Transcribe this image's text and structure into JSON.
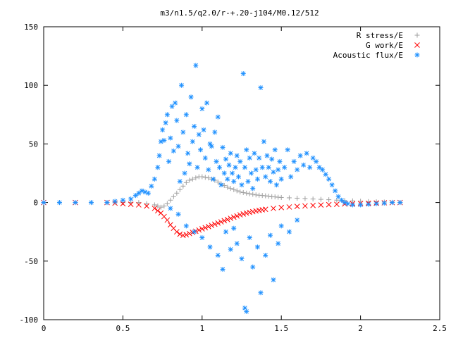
{
  "chart_data": {
    "type": "scatter",
    "title": "m3/n1.5/q2.0/r-+.20-j104/M0.12/512",
    "xlim": [
      0,
      2.5
    ],
    "ylim": [
      -100,
      150
    ],
    "x_ticks": [
      "0",
      "0.5",
      "1",
      "1.5",
      "2",
      "2.5"
    ],
    "y_ticks": [
      "150",
      "100",
      "50",
      "0",
      "-50",
      "-100"
    ],
    "x_tick_values": [
      0,
      0.5,
      1,
      1.5,
      2,
      2.5
    ],
    "y_tick_values": [
      150,
      100,
      50,
      0,
      -50,
      -100
    ],
    "grid": false,
    "legend_position": "top-right",
    "series": [
      {
        "name": "R stress/E",
        "marker": "plus",
        "color": "#a0a0a0",
        "points": [
          [
            0.0,
            0
          ],
          [
            0.1,
            0
          ],
          [
            0.2,
            0
          ],
          [
            0.3,
            0
          ],
          [
            0.4,
            0
          ],
          [
            0.45,
            0
          ],
          [
            0.5,
            0
          ],
          [
            0.55,
            0
          ],
          [
            0.6,
            0
          ],
          [
            0.65,
            -1
          ],
          [
            0.7,
            -2
          ],
          [
            0.72,
            -3
          ],
          [
            0.74,
            -4
          ],
          [
            0.76,
            -3
          ],
          [
            0.78,
            -1
          ],
          [
            0.8,
            2
          ],
          [
            0.82,
            5
          ],
          [
            0.84,
            8
          ],
          [
            0.86,
            11
          ],
          [
            0.88,
            14
          ],
          [
            0.9,
            17
          ],
          [
            0.92,
            19
          ],
          [
            0.94,
            20
          ],
          [
            0.96,
            21
          ],
          [
            0.98,
            22
          ],
          [
            1.0,
            22
          ],
          [
            1.02,
            21.5
          ],
          [
            1.04,
            21
          ],
          [
            1.06,
            20
          ],
          [
            1.08,
            19
          ],
          [
            1.1,
            17.5
          ],
          [
            1.12,
            16
          ],
          [
            1.14,
            14.5
          ],
          [
            1.16,
            13
          ],
          [
            1.18,
            12
          ],
          [
            1.2,
            11
          ],
          [
            1.22,
            10
          ],
          [
            1.24,
            9
          ],
          [
            1.26,
            8.5
          ],
          [
            1.28,
            8
          ],
          [
            1.3,
            7.5
          ],
          [
            1.32,
            7
          ],
          [
            1.34,
            6.5
          ],
          [
            1.36,
            6.2
          ],
          [
            1.38,
            6
          ],
          [
            1.4,
            5.7
          ],
          [
            1.42,
            5.4
          ],
          [
            1.44,
            5
          ],
          [
            1.46,
            4.8
          ],
          [
            1.48,
            4.5
          ],
          [
            1.5,
            4.3
          ],
          [
            1.55,
            4
          ],
          [
            1.6,
            3.7
          ],
          [
            1.65,
            3.4
          ],
          [
            1.7,
            3
          ],
          [
            1.75,
            2.7
          ],
          [
            1.8,
            2.4
          ],
          [
            1.85,
            2
          ],
          [
            1.9,
            1.7
          ],
          [
            1.95,
            1.4
          ],
          [
            2.0,
            1.1
          ],
          [
            2.05,
            0.8
          ],
          [
            2.1,
            0.6
          ],
          [
            2.15,
            0.4
          ],
          [
            2.2,
            0.2
          ],
          [
            2.25,
            0
          ]
        ]
      },
      {
        "name": "G work/E",
        "marker": "cross",
        "color": "#ff0000",
        "points": [
          [
            0.0,
            0
          ],
          [
            0.2,
            0
          ],
          [
            0.4,
            0
          ],
          [
            0.45,
            -0.5
          ],
          [
            0.5,
            -1
          ],
          [
            0.55,
            -1.5
          ],
          [
            0.6,
            -2
          ],
          [
            0.65,
            -3
          ],
          [
            0.7,
            -5
          ],
          [
            0.72,
            -7
          ],
          [
            0.74,
            -9
          ],
          [
            0.76,
            -12
          ],
          [
            0.78,
            -15
          ],
          [
            0.8,
            -19
          ],
          [
            0.82,
            -22
          ],
          [
            0.84,
            -25
          ],
          [
            0.86,
            -27
          ],
          [
            0.88,
            -28
          ],
          [
            0.9,
            -27.5
          ],
          [
            0.92,
            -26.5
          ],
          [
            0.94,
            -25.5
          ],
          [
            0.96,
            -24.5
          ],
          [
            0.98,
            -23.5
          ],
          [
            1.0,
            -22.5
          ],
          [
            1.02,
            -21.5
          ],
          [
            1.04,
            -20.5
          ],
          [
            1.06,
            -19.5
          ],
          [
            1.08,
            -18.5
          ],
          [
            1.1,
            -17.5
          ],
          [
            1.12,
            -16.5
          ],
          [
            1.14,
            -15.5
          ],
          [
            1.16,
            -14.5
          ],
          [
            1.18,
            -13.5
          ],
          [
            1.2,
            -12.5
          ],
          [
            1.22,
            -11.5
          ],
          [
            1.24,
            -10.5
          ],
          [
            1.26,
            -9.8
          ],
          [
            1.28,
            -9
          ],
          [
            1.3,
            -8.4
          ],
          [
            1.32,
            -7.8
          ],
          [
            1.34,
            -7.2
          ],
          [
            1.36,
            -6.7
          ],
          [
            1.38,
            -6.2
          ],
          [
            1.4,
            -5.8
          ],
          [
            1.45,
            -5
          ],
          [
            1.5,
            -4.3
          ],
          [
            1.55,
            -3.8
          ],
          [
            1.6,
            -3.3
          ],
          [
            1.65,
            -2.9
          ],
          [
            1.7,
            -2.5
          ],
          [
            1.75,
            -2.1
          ],
          [
            1.8,
            -1.8
          ],
          [
            1.85,
            -1.5
          ],
          [
            1.9,
            -1.2
          ],
          [
            1.95,
            -1
          ],
          [
            2.0,
            -0.8
          ],
          [
            2.05,
            -0.6
          ],
          [
            2.1,
            -0.4
          ],
          [
            2.15,
            -0.2
          ],
          [
            2.2,
            -0.1
          ],
          [
            2.25,
            0
          ]
        ]
      },
      {
        "name": "Acoustic flux/E",
        "marker": "star",
        "color": "#1e90ff",
        "points": [
          [
            0.0,
            0
          ],
          [
            0.1,
            0
          ],
          [
            0.2,
            0
          ],
          [
            0.3,
            0
          ],
          [
            0.4,
            0
          ],
          [
            0.45,
            1
          ],
          [
            0.5,
            2
          ],
          [
            0.55,
            3
          ],
          [
            0.58,
            6
          ],
          [
            0.6,
            8
          ],
          [
            0.62,
            10
          ],
          [
            0.64,
            9
          ],
          [
            0.66,
            8
          ],
          [
            0.68,
            14
          ],
          [
            0.7,
            20
          ],
          [
            0.72,
            30
          ],
          [
            0.73,
            40
          ],
          [
            0.74,
            52
          ],
          [
            0.75,
            62
          ],
          [
            0.76,
            53
          ],
          [
            0.77,
            68
          ],
          [
            0.78,
            75
          ],
          [
            0.79,
            35
          ],
          [
            0.8,
            55
          ],
          [
            0.81,
            82
          ],
          [
            0.82,
            44
          ],
          [
            0.83,
            85
          ],
          [
            0.84,
            70
          ],
          [
            0.85,
            48
          ],
          [
            0.86,
            18
          ],
          [
            0.87,
            100
          ],
          [
            0.88,
            60
          ],
          [
            0.89,
            25
          ],
          [
            0.9,
            75
          ],
          [
            0.91,
            42
          ],
          [
            0.92,
            33
          ],
          [
            0.93,
            90
          ],
          [
            0.94,
            52
          ],
          [
            0.95,
            65
          ],
          [
            0.96,
            117
          ],
          [
            0.97,
            30
          ],
          [
            0.98,
            58
          ],
          [
            0.99,
            45
          ],
          [
            1.0,
            80
          ],
          [
            1.01,
            62
          ],
          [
            1.02,
            38
          ],
          [
            1.03,
            85
          ],
          [
            1.04,
            28
          ],
          [
            1.05,
            50
          ],
          [
            1.06,
            48
          ],
          [
            1.07,
            20
          ],
          [
            1.08,
            60
          ],
          [
            1.09,
            35
          ],
          [
            1.1,
            73
          ],
          [
            1.11,
            30
          ],
          [
            1.12,
            15
          ],
          [
            1.13,
            47
          ],
          [
            1.14,
            25
          ],
          [
            1.15,
            37
          ],
          [
            1.16,
            20
          ],
          [
            1.17,
            32
          ],
          [
            1.18,
            42
          ],
          [
            1.19,
            25
          ],
          [
            1.2,
            18
          ],
          [
            1.21,
            30
          ],
          [
            1.22,
            40
          ],
          [
            1.23,
            22
          ],
          [
            1.24,
            35
          ],
          [
            1.25,
            15
          ],
          [
            1.26,
            110
          ],
          [
            1.27,
            30
          ],
          [
            1.28,
            45
          ],
          [
            1.29,
            18
          ],
          [
            1.3,
            38
          ],
          [
            1.31,
            25
          ],
          [
            1.32,
            12
          ],
          [
            1.33,
            42
          ],
          [
            1.34,
            28
          ],
          [
            1.35,
            20
          ],
          [
            1.36,
            38
          ],
          [
            1.37,
            98
          ],
          [
            1.38,
            30
          ],
          [
            1.39,
            52
          ],
          [
            1.4,
            22
          ],
          [
            1.41,
            40
          ],
          [
            1.42,
            30
          ],
          [
            1.43,
            18
          ],
          [
            1.44,
            37
          ],
          [
            1.45,
            26
          ],
          [
            1.46,
            45
          ],
          [
            1.47,
            15
          ],
          [
            1.48,
            28
          ],
          [
            1.49,
            35
          ],
          [
            1.5,
            20
          ],
          [
            1.52,
            30
          ],
          [
            1.54,
            45
          ],
          [
            1.56,
            22
          ],
          [
            1.58,
            35
          ],
          [
            1.6,
            28
          ],
          [
            1.62,
            40
          ],
          [
            1.64,
            32
          ],
          [
            1.66,
            42
          ],
          [
            1.68,
            30
          ],
          [
            1.7,
            38
          ],
          [
            1.72,
            35
          ],
          [
            1.74,
            30
          ],
          [
            1.76,
            28
          ],
          [
            1.78,
            24
          ],
          [
            1.8,
            20
          ],
          [
            1.82,
            15
          ],
          [
            1.84,
            10
          ],
          [
            1.86,
            5
          ],
          [
            1.88,
            2
          ],
          [
            1.9,
            0
          ],
          [
            1.92,
            -1
          ],
          [
            1.95,
            -2
          ],
          [
            2.0,
            -2
          ],
          [
            2.05,
            -1.5
          ],
          [
            2.1,
            -1
          ],
          [
            2.15,
            -0.5
          ],
          [
            2.2,
            0
          ],
          [
            2.25,
            0
          ],
          [
            0.8,
            -5
          ],
          [
            0.85,
            -10
          ],
          [
            0.9,
            -20
          ],
          [
            0.95,
            -25
          ],
          [
            1.0,
            -30
          ],
          [
            1.05,
            -38
          ],
          [
            1.1,
            -45
          ],
          [
            1.13,
            -57
          ],
          [
            1.15,
            -25
          ],
          [
            1.18,
            -40
          ],
          [
            1.2,
            -22
          ],
          [
            1.22,
            -35
          ],
          [
            1.25,
            -48
          ],
          [
            1.27,
            -90
          ],
          [
            1.28,
            -93
          ],
          [
            1.3,
            -30
          ],
          [
            1.32,
            -55
          ],
          [
            1.35,
            -38
          ],
          [
            1.37,
            -77
          ],
          [
            1.4,
            -45
          ],
          [
            1.43,
            -28
          ],
          [
            1.45,
            -66
          ],
          [
            1.48,
            -35
          ],
          [
            1.5,
            -20
          ],
          [
            1.55,
            -25
          ],
          [
            1.6,
            -15
          ]
        ]
      }
    ]
  }
}
